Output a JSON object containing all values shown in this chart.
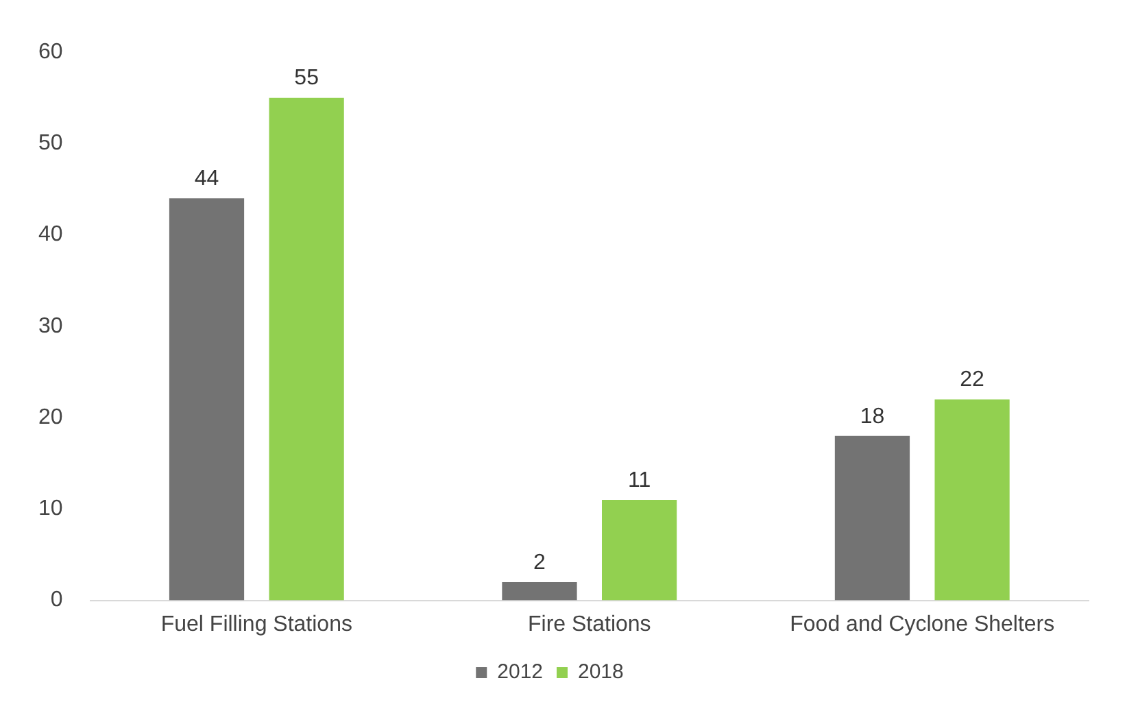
{
  "chart_data": {
    "type": "bar",
    "categories": [
      "Fuel Filling Stations",
      "Fire Stations",
      "Food and Cyclone Shelters"
    ],
    "series": [
      {
        "name": "2012",
        "color": "#737373",
        "values": [
          44,
          2,
          18
        ]
      },
      {
        "name": "2018",
        "color": "#92d050",
        "values": [
          55,
          11,
          22
        ]
      }
    ],
    "ylim": [
      0,
      60
    ],
    "yticks": [
      0,
      10,
      20,
      30,
      40,
      50,
      60
    ],
    "grid": false,
    "legend": "bottom",
    "data_labels": true
  }
}
